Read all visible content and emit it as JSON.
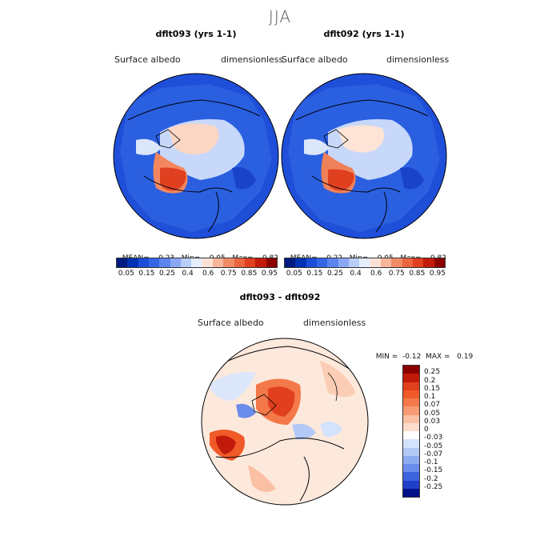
{
  "page": {
    "title": "JJA"
  },
  "panels": [
    {
      "title": "dflt093 (yrs 1-1)",
      "variable": "Surface albedo",
      "units": "dimensionless",
      "stats": {
        "mean_label": "MEAN=",
        "mean": "0.23",
        "min_label": "Min=",
        "min": "0.05",
        "max_label": "Max=",
        "max": "0.82"
      }
    },
    {
      "title": "dflt092 (yrs 1-1)",
      "variable": "Surface albedo",
      "units": "dimensionless",
      "stats": {
        "mean_label": "MEAN=",
        "mean": "0.22",
        "min_label": "Min=",
        "min": "0.05",
        "max_label": "Max=",
        "max": "0.82"
      }
    }
  ],
  "top_colorbar": {
    "colors": [
      "#001a80",
      "#0033b3",
      "#1a4dd9",
      "#3366e6",
      "#5c85f0",
      "#8aa8f5",
      "#b8cdfa",
      "#e6eefc",
      "#fde2d4",
      "#f8b79a",
      "#f28a66",
      "#ec6440",
      "#e0401e",
      "#c21a0a",
      "#8c0000"
    ],
    "tick_labels": [
      "0.05",
      "0.15",
      "0.25",
      "0.4",
      "0.6",
      "0.75",
      "0.85",
      "0.95"
    ]
  },
  "diff_panel": {
    "title": "dflt093 - dflt092",
    "variable": "Surface albedo",
    "units": "dimensionless",
    "stats": {
      "min_label": "MIN =",
      "min": "-0.12",
      "max_label": "MAX =",
      "max": "0.19"
    }
  },
  "diff_colorbar": {
    "colors": [
      "#8c0000",
      "#c21a0a",
      "#e0401e",
      "#f05a28",
      "#f4794a",
      "#f79a75",
      "#fbbfa4",
      "#fddccc",
      "#ffffff",
      "#d4e2fb",
      "#b3c9f7",
      "#8cabf2",
      "#6a8cec",
      "#3d63de",
      "#1f3fc8",
      "#00118a"
    ],
    "tick_labels": [
      "0.25",
      "0.2",
      "0.15",
      "0.1",
      "0.07",
      "0.05",
      "0.03",
      "0",
      "-0.03",
      "-0.05",
      "-0.07",
      "-0.1",
      "-0.15",
      "-0.2",
      "-0.25"
    ]
  }
}
